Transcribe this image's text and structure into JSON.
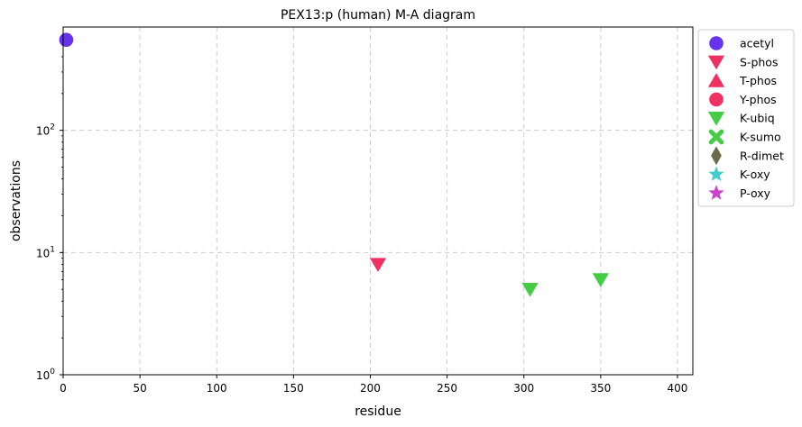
{
  "chart_data": {
    "type": "scatter",
    "title": "PEX13:p (human) M-A diagram",
    "xlabel": "residue",
    "ylabel": "observations",
    "xlim": [
      0,
      410
    ],
    "ylim": [
      1,
      700
    ],
    "yscale": "log",
    "grid": true,
    "legend_placement": "outside-right-top",
    "x_ticks": [
      "0",
      "50",
      "100",
      "150",
      "200",
      "250",
      "300",
      "350",
      "400"
    ],
    "y_ticks": [
      {
        "value": 1,
        "base": "10",
        "exp": "0"
      },
      {
        "value": 10,
        "base": "10",
        "exp": "1"
      },
      {
        "value": 100,
        "base": "10",
        "exp": "2"
      }
    ],
    "series": [
      {
        "name": "acetyl",
        "marker": "circle",
        "color": "#6633ee",
        "points": [
          [
            2,
            550
          ]
        ]
      },
      {
        "name": "S-phos",
        "marker": "triangle-down",
        "color": "#f03060",
        "points": [
          [
            205,
            8
          ]
        ]
      },
      {
        "name": "T-phos",
        "marker": "triangle-up",
        "color": "#f03060",
        "points": []
      },
      {
        "name": "Y-phos",
        "marker": "circle",
        "color": "#f03060",
        "points": []
      },
      {
        "name": "K-ubiq",
        "marker": "triangle-down",
        "color": "#44cc44",
        "points": [
          [
            304,
            5
          ],
          [
            350,
            6
          ]
        ]
      },
      {
        "name": "K-sumo",
        "marker": "x",
        "color": "#44cc44",
        "points": []
      },
      {
        "name": "R-dimet",
        "marker": "diamond",
        "color": "#6b6b4a",
        "points": []
      },
      {
        "name": "K-oxy",
        "marker": "star",
        "color": "#44cccc",
        "points": []
      },
      {
        "name": "P-oxy",
        "marker": "star",
        "color": "#cc44cc",
        "points": []
      }
    ]
  }
}
